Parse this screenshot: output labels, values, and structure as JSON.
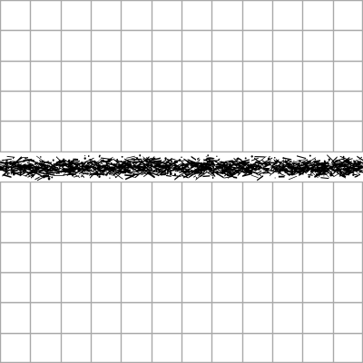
{
  "colors": {
    "background": "#ffffff",
    "grid_line": "#a8a8a8",
    "stroke_fill": "#000000"
  },
  "grid": {
    "columns": 12,
    "rows": 12
  },
  "stroke": {
    "orientation": "horizontal",
    "texture": "speckled-brush"
  }
}
